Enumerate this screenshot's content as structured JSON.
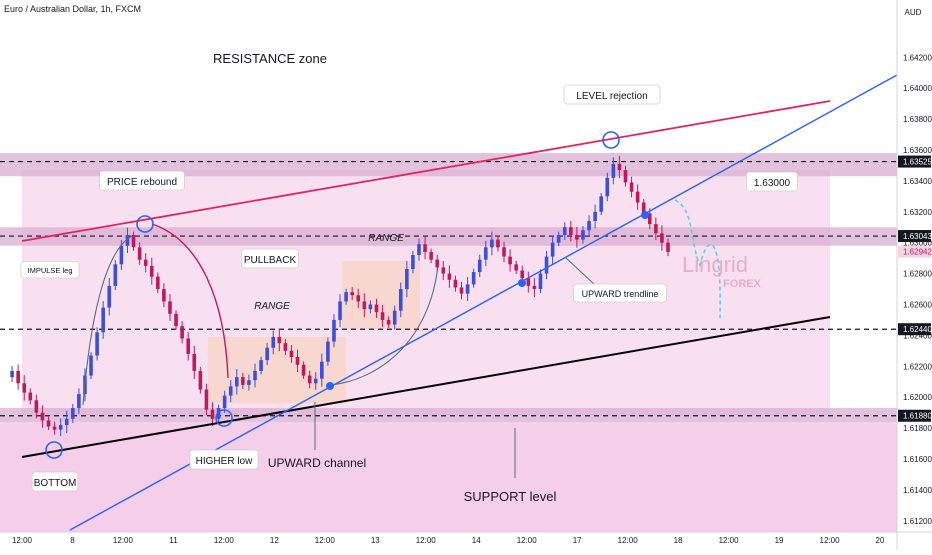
{
  "symbol_title": "Euro / Australian Dollar, 1h, FXCM",
  "currency_label": "AUD",
  "watermark": {
    "brand": "Lingrid",
    "sub": "FOREX"
  },
  "colors": {
    "bull": "#3b4fd8",
    "bear": "#c2185b",
    "zone": "#f3c6e6",
    "zone_band": "#d7a8cf",
    "trend_blue": "#2962ff",
    "resistance_line": "#e0245e",
    "support_line": "#000000"
  },
  "annotations": {
    "resistance_zone": "RESISTANCE zone",
    "support_level": "SUPPORT level",
    "level_rejection": "LEVEL rejection",
    "price_rebound": "PRICE rebound",
    "pullback": "PULLBACK",
    "impulse_leg": "IMPULSE leg",
    "range_1": "RANGE",
    "range_2": "RANGE",
    "upward_trendline": "UPWARD trendline",
    "upward_channel": "UPWARD channel",
    "higher_low": "HIGHER low",
    "bottom": "BOTTOM",
    "target_price": "1.63000"
  },
  "chart_data": {
    "type": "candlestick",
    "title": "Euro / Australian Dollar, 1h, FXCM",
    "ylabel": "AUD",
    "ylim": [
      1.6116,
      1.6448
    ],
    "x_ticks": [
      "12:00",
      "8",
      "12:00",
      "11",
      "12:00",
      "12",
      "12:00",
      "13",
      "12:00",
      "14",
      "12:00",
      "17",
      "12:00",
      "18",
      "12:00",
      "19",
      "12:00",
      "20"
    ],
    "y_ticks": [
      "1.64200",
      "1.64000",
      "1.63800",
      "1.63600",
      "1.63400",
      "1.63200",
      "1.63000",
      "1.62800",
      "1.62600",
      "1.62400",
      "1.62200",
      "1.62000",
      "1.61800",
      "1.61600",
      "1.61400",
      "1.61200"
    ],
    "price_labels": [
      {
        "value": 1.63525,
        "text": "1.63525",
        "style": "dark"
      },
      {
        "value": 1.63043,
        "text": "1.63043",
        "style": "dark"
      },
      {
        "value": 1.62942,
        "text": "1.62942",
        "style": "red"
      },
      {
        "value": 1.6244,
        "text": "1.62440",
        "style": "dark"
      },
      {
        "value": 1.6188,
        "text": "1.61880",
        "style": "dark"
      }
    ],
    "key_levels": [
      1.63525,
      1.63043,
      1.6244,
      1.6188
    ],
    "zones": [
      {
        "name": "resistance zone",
        "from": 1.6343,
        "to": 1.6358
      },
      {
        "name": "support zone",
        "from": 1.6184,
        "to": 1.6193
      },
      {
        "name": "middle band",
        "from": 1.6298,
        "to": 1.631
      }
    ],
    "close_path": [
      1.6213,
      1.6217,
      1.6209,
      1.6203,
      1.6198,
      1.619,
      1.6185,
      1.6181,
      1.6179,
      1.6182,
      1.6186,
      1.6193,
      1.6202,
      1.6214,
      1.6227,
      1.6242,
      1.6258,
      1.6272,
      1.6286,
      1.6298,
      1.6305,
      1.6297,
      1.6289,
      1.6285,
      1.6278,
      1.627,
      1.6262,
      1.6254,
      1.6246,
      1.6238,
      1.6228,
      1.6217,
      1.6205,
      1.6192,
      1.6186,
      1.6193,
      1.6201,
      1.6207,
      1.6213,
      1.6208,
      1.6211,
      1.6217,
      1.6224,
      1.6232,
      1.6239,
      1.6235,
      1.623,
      1.6226,
      1.6221,
      1.6214,
      1.6209,
      1.6212,
      1.6223,
      1.6236,
      1.625,
      1.6262,
      1.6268,
      1.6266,
      1.6262,
      1.6257,
      1.626,
      1.6255,
      1.625,
      1.6247,
      1.6256,
      1.627,
      1.6283,
      1.6292,
      1.6299,
      1.6294,
      1.6289,
      1.6284,
      1.628,
      1.6276,
      1.6271,
      1.6267,
      1.6273,
      1.6281,
      1.6289,
      1.6297,
      1.6302,
      1.6297,
      1.6291,
      1.6286,
      1.6282,
      1.6277,
      1.6272,
      1.627,
      1.628,
      1.6291,
      1.63,
      1.6305,
      1.631,
      1.6305,
      1.6302,
      1.6308,
      1.6314,
      1.632,
      1.633,
      1.6342,
      1.6351,
      1.6347,
      1.6339,
      1.6333,
      1.6326,
      1.6319,
      1.6312,
      1.6306,
      1.63,
      1.6294
    ],
    "events": [
      {
        "label": "BOTTOM",
        "value": 1.6169
      },
      {
        "label": "PRICE rebound",
        "value": 1.6304
      },
      {
        "label": "HIGHER low",
        "value": 1.6186
      },
      {
        "label": "LEVEL rejection",
        "value": 1.6352
      }
    ]
  }
}
